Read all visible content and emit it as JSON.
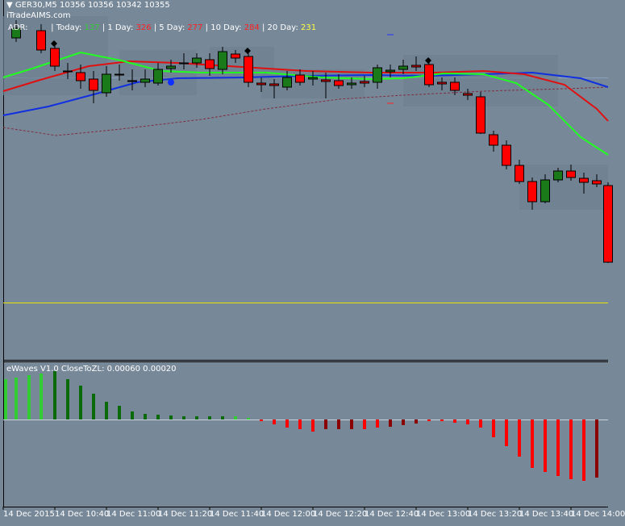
{
  "header": {
    "symbol_line": "GER30,M5  10356 10356 10342 10355",
    "site": "iTradeAIMS.com"
  },
  "stats": {
    "adr_label": "ADR:",
    "today_label": "| Today:",
    "today": "137",
    "day1_label": "| 1 Day:",
    "day1": "326",
    "day5_label": "| 5 Day:",
    "day5": "277",
    "day10_label": "| 10 Day:",
    "day10": "284",
    "day20_label": "| 20 Day:",
    "day20": "231"
  },
  "indicator": {
    "label": "eWaves V1.0 CloseToZL: 0.00060 0.00020"
  },
  "time_axis": [
    "14 Dec 2015",
    "14 Dec 10:40",
    "14 Dec 11:00",
    "14 Dec 11:20",
    "14 Dec 11:40",
    "14 Dec 12:00",
    "14 Dec 12:20",
    "14 Dec 12:40",
    "14 Dec 13:00",
    "14 Dec 13:20",
    "14 Dec 13:40",
    "14 Dec 14:00"
  ]
}
